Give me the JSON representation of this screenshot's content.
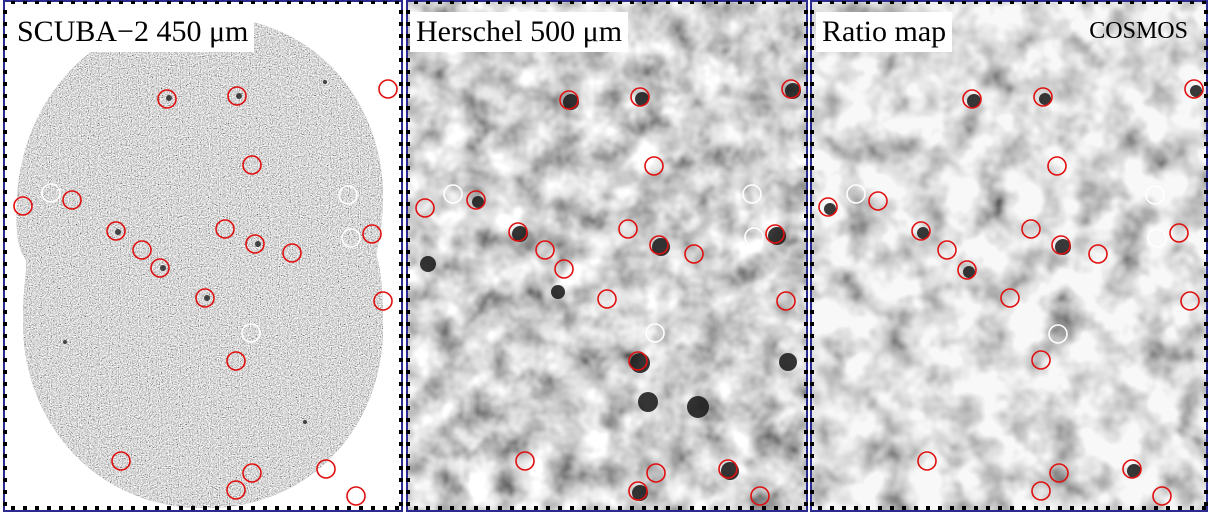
{
  "panels": [
    {
      "id": "scuba",
      "label": "SCUBA−2 450 μm",
      "red_markers": [
        [
          167,
          99
        ],
        [
          237,
          96
        ],
        [
          252,
          165
        ],
        [
          23,
          206
        ],
        [
          72,
          200
        ],
        [
          116,
          231
        ],
        [
          142,
          250
        ],
        [
          160,
          268
        ],
        [
          225,
          229
        ],
        [
          255,
          244
        ],
        [
          292,
          253
        ],
        [
          205,
          298
        ],
        [
          372,
          234
        ],
        [
          388,
          89
        ],
        [
          383,
          301
        ],
        [
          236,
          361
        ],
        [
          121,
          461
        ],
        [
          252,
          473
        ],
        [
          236,
          490
        ],
        [
          326,
          469
        ],
        [
          356,
          496
        ]
      ],
      "white_markers": [
        [
          51,
          193
        ],
        [
          348,
          195
        ],
        [
          351,
          238
        ],
        [
          251,
          333
        ]
      ]
    },
    {
      "id": "herschel",
      "label": "Herschel 500 μm",
      "red_markers": [
        [
          569,
          100
        ],
        [
          640,
          97
        ],
        [
          791,
          89
        ],
        [
          654,
          166
        ],
        [
          425,
          208
        ],
        [
          476,
          200
        ],
        [
          518,
          232
        ],
        [
          545,
          250
        ],
        [
          564,
          269
        ],
        [
          628,
          229
        ],
        [
          659,
          245
        ],
        [
          694,
          254
        ],
        [
          607,
          299
        ],
        [
          775,
          234
        ],
        [
          786,
          301
        ],
        [
          638,
          361
        ],
        [
          525,
          461
        ],
        [
          656,
          473
        ],
        [
          638,
          491
        ],
        [
          728,
          469
        ],
        [
          760,
          496
        ]
      ],
      "white_markers": [
        [
          453,
          194
        ],
        [
          752,
          194
        ],
        [
          754,
          237
        ],
        [
          655,
          333
        ]
      ]
    },
    {
      "id": "ratio",
      "label": "Ratio map",
      "tag": "COSMOS",
      "red_markers": [
        [
          972,
          99
        ],
        [
          1043,
          97
        ],
        [
          1194,
          89
        ],
        [
          1057,
          166
        ],
        [
          828,
          207
        ],
        [
          878,
          201
        ],
        [
          921,
          231
        ],
        [
          947,
          250
        ],
        [
          967,
          270
        ],
        [
          1031,
          229
        ],
        [
          1061,
          245
        ],
        [
          1098,
          254
        ],
        [
          1010,
          298
        ],
        [
          1179,
          233
        ],
        [
          1190,
          301
        ],
        [
          1041,
          360
        ],
        [
          927,
          461
        ],
        [
          1059,
          473
        ],
        [
          1041,
          491
        ],
        [
          1132,
          469
        ],
        [
          1162,
          496
        ]
      ],
      "white_markers": [
        [
          856,
          194
        ],
        [
          1155,
          195
        ],
        [
          1157,
          238
        ],
        [
          1058,
          334
        ]
      ]
    }
  ],
  "colors": {
    "marker_red": "#e01010",
    "marker_white": "#ffffff",
    "frame": "#2b2b8f"
  }
}
